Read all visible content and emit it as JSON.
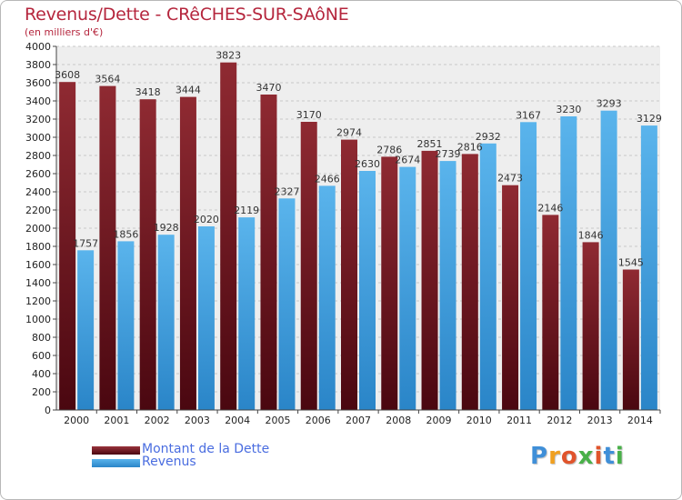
{
  "colors": {
    "dette": "#7a1520",
    "revenus": "#3d9ee0",
    "title": "#b5263d",
    "legend_text": "#4a6de0"
  },
  "chart_data": {
    "type": "bar",
    "title": "Revenus/Dette - CRêCHES-SUR-SAôNE",
    "subtitle": "(en milliers d'€)",
    "categories": [
      "2000",
      "2001",
      "2002",
      "2003",
      "2004",
      "2005",
      "2006",
      "2007",
      "2008",
      "2009",
      "2010",
      "2011",
      "2012",
      "2013",
      "2014"
    ],
    "series": [
      {
        "name": "Montant de la Dette",
        "values": [
          3608,
          3564,
          3418,
          3444,
          3823,
          3470,
          3170,
          2974,
          2786,
          2851,
          2816,
          2473,
          2146,
          1846,
          1545
        ],
        "labels": [
          "3608",
          "3564",
          "3418",
          "3444",
          "3823",
          "3470",
          "3170",
          "2974",
          "2786",
          "2851",
          "2816",
          "2473",
          "2146",
          "1846",
          "1545"
        ]
      },
      {
        "name": "Revenus",
        "values": [
          1757,
          1856,
          1928,
          2020,
          2119,
          2327,
          2466,
          2630,
          2674,
          2739,
          2932,
          3167,
          3230,
          3293,
          3129
        ],
        "labels": [
          "1757",
          "1856",
          "1928",
          "2020",
          "2119",
          "2327",
          "2466",
          "2630",
          "2674",
          "2739",
          "2932",
          "3167",
          "3230",
          "3293",
          "3129"
        ]
      }
    ],
    "yticks": [
      "0",
      "200",
      "400",
      "600",
      "800",
      "1000",
      "1200",
      "1400",
      "1600",
      "1800",
      "2000",
      "2200",
      "2400",
      "2600",
      "2800",
      "3000",
      "3200",
      "3400",
      "3600",
      "3800",
      "4000"
    ],
    "ylim": [
      0,
      4000
    ],
    "grid": true,
    "legend_position": "bottom-left"
  },
  "logo": {
    "letters": [
      "P",
      "r",
      "o",
      "x",
      "i",
      "t",
      "i"
    ],
    "colors": [
      "#3f8fd8",
      "#f0a020",
      "#e0542c",
      "#48b048",
      "#e0542c",
      "#3f8fd8",
      "#48b048"
    ]
  }
}
